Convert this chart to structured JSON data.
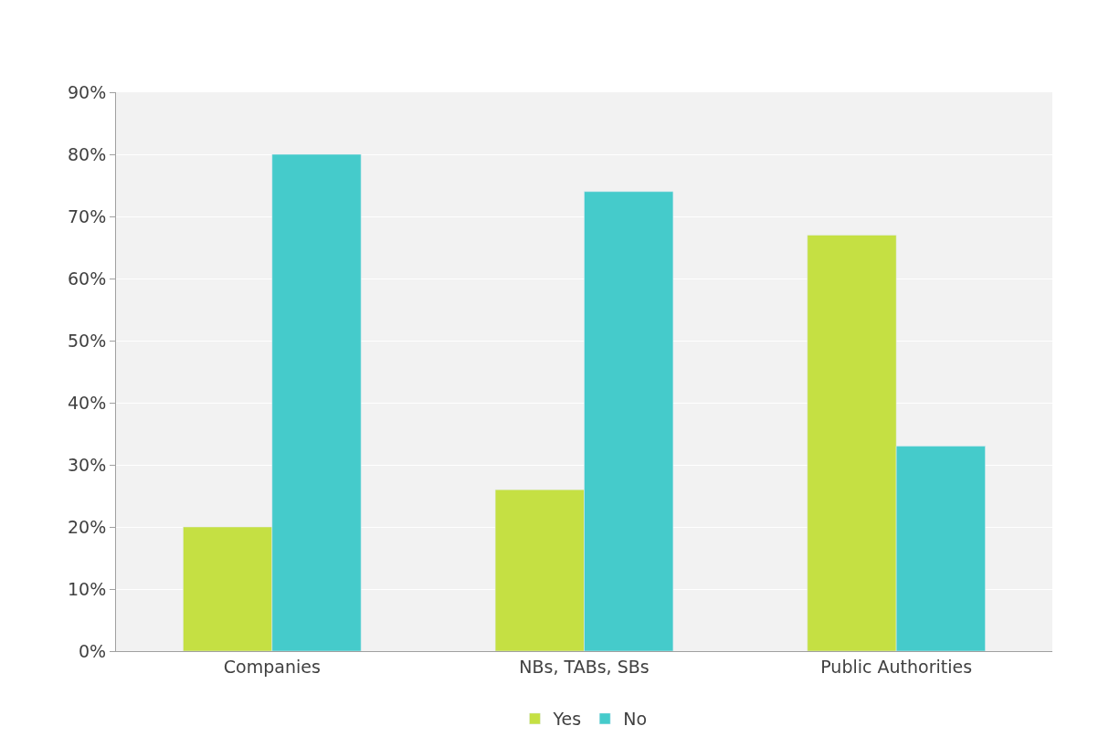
{
  "chart_data": {
    "type": "bar",
    "categories": [
      "Companies",
      "NBs, TABs, SBs",
      "Public Authorities"
    ],
    "series": [
      {
        "name": "Yes",
        "color": "#c5e043",
        "values": [
          20,
          26,
          67
        ]
      },
      {
        "name": "No",
        "color": "#45cbcb",
        "values": [
          80,
          74,
          33
        ]
      }
    ],
    "ylim": [
      0,
      90
    ],
    "yticks": [
      {
        "value": 0,
        "label": "0%"
      },
      {
        "value": 10,
        "label": "10%"
      },
      {
        "value": 20,
        "label": "20%"
      },
      {
        "value": 30,
        "label": "30%"
      },
      {
        "value": 40,
        "label": "40%"
      },
      {
        "value": 50,
        "label": "50%"
      },
      {
        "value": 60,
        "label": "60%"
      },
      {
        "value": 70,
        "label": "70%"
      },
      {
        "value": 80,
        "label": "80%"
      },
      {
        "value": 90,
        "label": "90%"
      }
    ],
    "grid": "y",
    "legend": "bottom"
  }
}
